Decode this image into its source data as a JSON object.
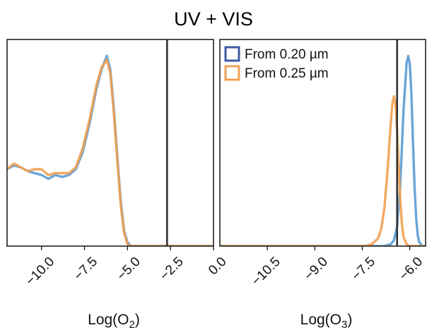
{
  "title": "UV + VIS",
  "colors": {
    "blue": "#5b9bd5",
    "orange": "#f0a050",
    "legend_blue": "#3a5aa0",
    "legend_orange": "#f0a050",
    "vline": "#333333",
    "frame": "#222222"
  },
  "chart_data": [
    {
      "type": "line",
      "xlabel_main": "Log(O",
      "xlabel_sub": "2",
      "xlabel_end": ")",
      "xlim": [
        -12,
        0
      ],
      "ylim": [
        0,
        1
      ],
      "ticks": [
        -10.0,
        -7.5,
        -5.0,
        -2.5,
        0.0
      ],
      "tick_labels": [
        "−10.0",
        "−7.5",
        "−5.0",
        "−2.5",
        "0.0"
      ],
      "vline": -2.7,
      "series": [
        {
          "name": "From 0.20 µm",
          "color": "blue",
          "x": [
            -12,
            -11.6,
            -11.2,
            -10.8,
            -10.4,
            -10.0,
            -9.6,
            -9.2,
            -8.8,
            -8.4,
            -8.0,
            -7.6,
            -7.2,
            -6.8,
            -6.5,
            -6.2,
            -6.0,
            -5.8,
            -5.6,
            -5.4,
            -5.2,
            -5.0,
            -4.8,
            -4.4,
            -4.0,
            -3.0,
            -2.0,
            -1.0,
            0.0
          ],
          "y": [
            0.4,
            0.42,
            0.41,
            0.39,
            0.38,
            0.37,
            0.35,
            0.37,
            0.36,
            0.37,
            0.4,
            0.49,
            0.64,
            0.82,
            0.92,
            0.99,
            0.92,
            0.72,
            0.48,
            0.24,
            0.08,
            0.02,
            0.0,
            0.0,
            0.0,
            0.0,
            0.0,
            0.0,
            0.0
          ]
        },
        {
          "name": "From 0.25 µm",
          "color": "orange",
          "x": [
            -12,
            -11.6,
            -11.2,
            -10.8,
            -10.4,
            -10.0,
            -9.6,
            -9.2,
            -8.8,
            -8.4,
            -8.0,
            -7.6,
            -7.2,
            -6.8,
            -6.5,
            -6.2,
            -6.0,
            -5.8,
            -5.6,
            -5.4,
            -5.2,
            -5.0,
            -4.8,
            -4.4,
            -4.0,
            -3.0,
            -2.0,
            -1.0,
            0.0
          ],
          "y": [
            0.4,
            0.43,
            0.41,
            0.39,
            0.4,
            0.4,
            0.37,
            0.38,
            0.38,
            0.38,
            0.41,
            0.51,
            0.66,
            0.84,
            0.93,
            0.97,
            0.9,
            0.7,
            0.46,
            0.22,
            0.07,
            0.01,
            0.0,
            0.0,
            0.0,
            0.0,
            0.0,
            0.0,
            0.0
          ]
        }
      ]
    },
    {
      "type": "line",
      "xlabel_main": "Log(O",
      "xlabel_sub": "3",
      "xlabel_end": ")",
      "xlim": [
        -12,
        -5.5
      ],
      "ylim": [
        0,
        1
      ],
      "ticks": [
        -10.5,
        -9.0,
        -7.5,
        -6.0
      ],
      "tick_labels": [
        "−10.5",
        "−9.0",
        "−7.5",
        "−6.0"
      ],
      "vline": -6.4,
      "legend": {
        "placement": "top-left"
      },
      "series": [
        {
          "name": "From 0.20 µm",
          "color": "blue",
          "x": [
            -12,
            -7.0,
            -6.8,
            -6.6,
            -6.5,
            -6.4,
            -6.3,
            -6.2,
            -6.1,
            -6.05,
            -6.0,
            -5.95,
            -5.9,
            -5.85,
            -5.8,
            -5.75,
            -5.7,
            -5.6,
            -5.5
          ],
          "y": [
            0.0,
            0.0,
            0.0,
            0.01,
            0.03,
            0.1,
            0.32,
            0.7,
            0.95,
            0.99,
            0.95,
            0.8,
            0.55,
            0.32,
            0.15,
            0.06,
            0.02,
            0.0,
            0.0
          ]
        },
        {
          "name": "From 0.25 µm",
          "color": "orange",
          "x": [
            -12,
            -7.4,
            -7.2,
            -7.0,
            -6.9,
            -6.8,
            -6.7,
            -6.6,
            -6.55,
            -6.5,
            -6.45,
            -6.4,
            -6.35,
            -6.3,
            -6.25,
            -6.2,
            -6.1,
            -6.0,
            -5.5
          ],
          "y": [
            0.0,
            0.0,
            0.01,
            0.04,
            0.09,
            0.2,
            0.4,
            0.64,
            0.74,
            0.78,
            0.74,
            0.6,
            0.42,
            0.24,
            0.12,
            0.05,
            0.01,
            0.0,
            0.0
          ]
        }
      ]
    }
  ]
}
